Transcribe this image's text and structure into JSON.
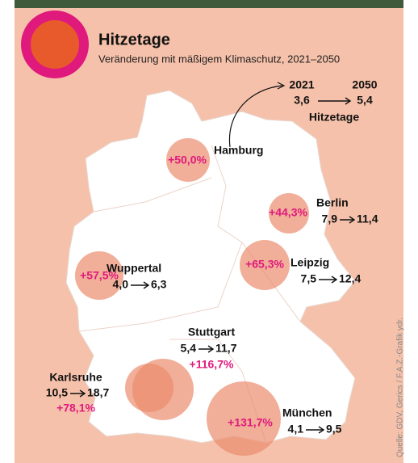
{
  "header": {
    "title": "Hitzetage",
    "subtitle": "Veränderung mit mäßigem Klimaschutz, 2021–2050"
  },
  "legend": {
    "from_year": "2021",
    "to_year": "2050",
    "from_value": "3,6",
    "to_value": "5,4",
    "unit": "Hitzetage"
  },
  "cities": [
    {
      "name": "Hamburg",
      "change": "+50,0%"
    },
    {
      "name": "Berlin",
      "change": "+44,3%",
      "from": "7,9",
      "to": "11,4"
    },
    {
      "name": "Leipzig",
      "change": "+65,3%",
      "from": "7,5",
      "to": "12,4"
    },
    {
      "name": "Wuppertal",
      "change": "+57,5%",
      "from": "4,0",
      "to": "6,3"
    },
    {
      "name": "Stuttgart",
      "change": "+116,7%",
      "from": "5,4",
      "to": "11,7"
    },
    {
      "name": "Karlsruhe",
      "change": "+78,1%",
      "from": "10,5",
      "to": "18,7"
    },
    {
      "name": "München",
      "change": "+131,7%",
      "from": "4,1",
      "to": "9,5"
    }
  ],
  "source": "Quelle: GDV, Gerics / F.A.Z.-Grafik ydr."
}
